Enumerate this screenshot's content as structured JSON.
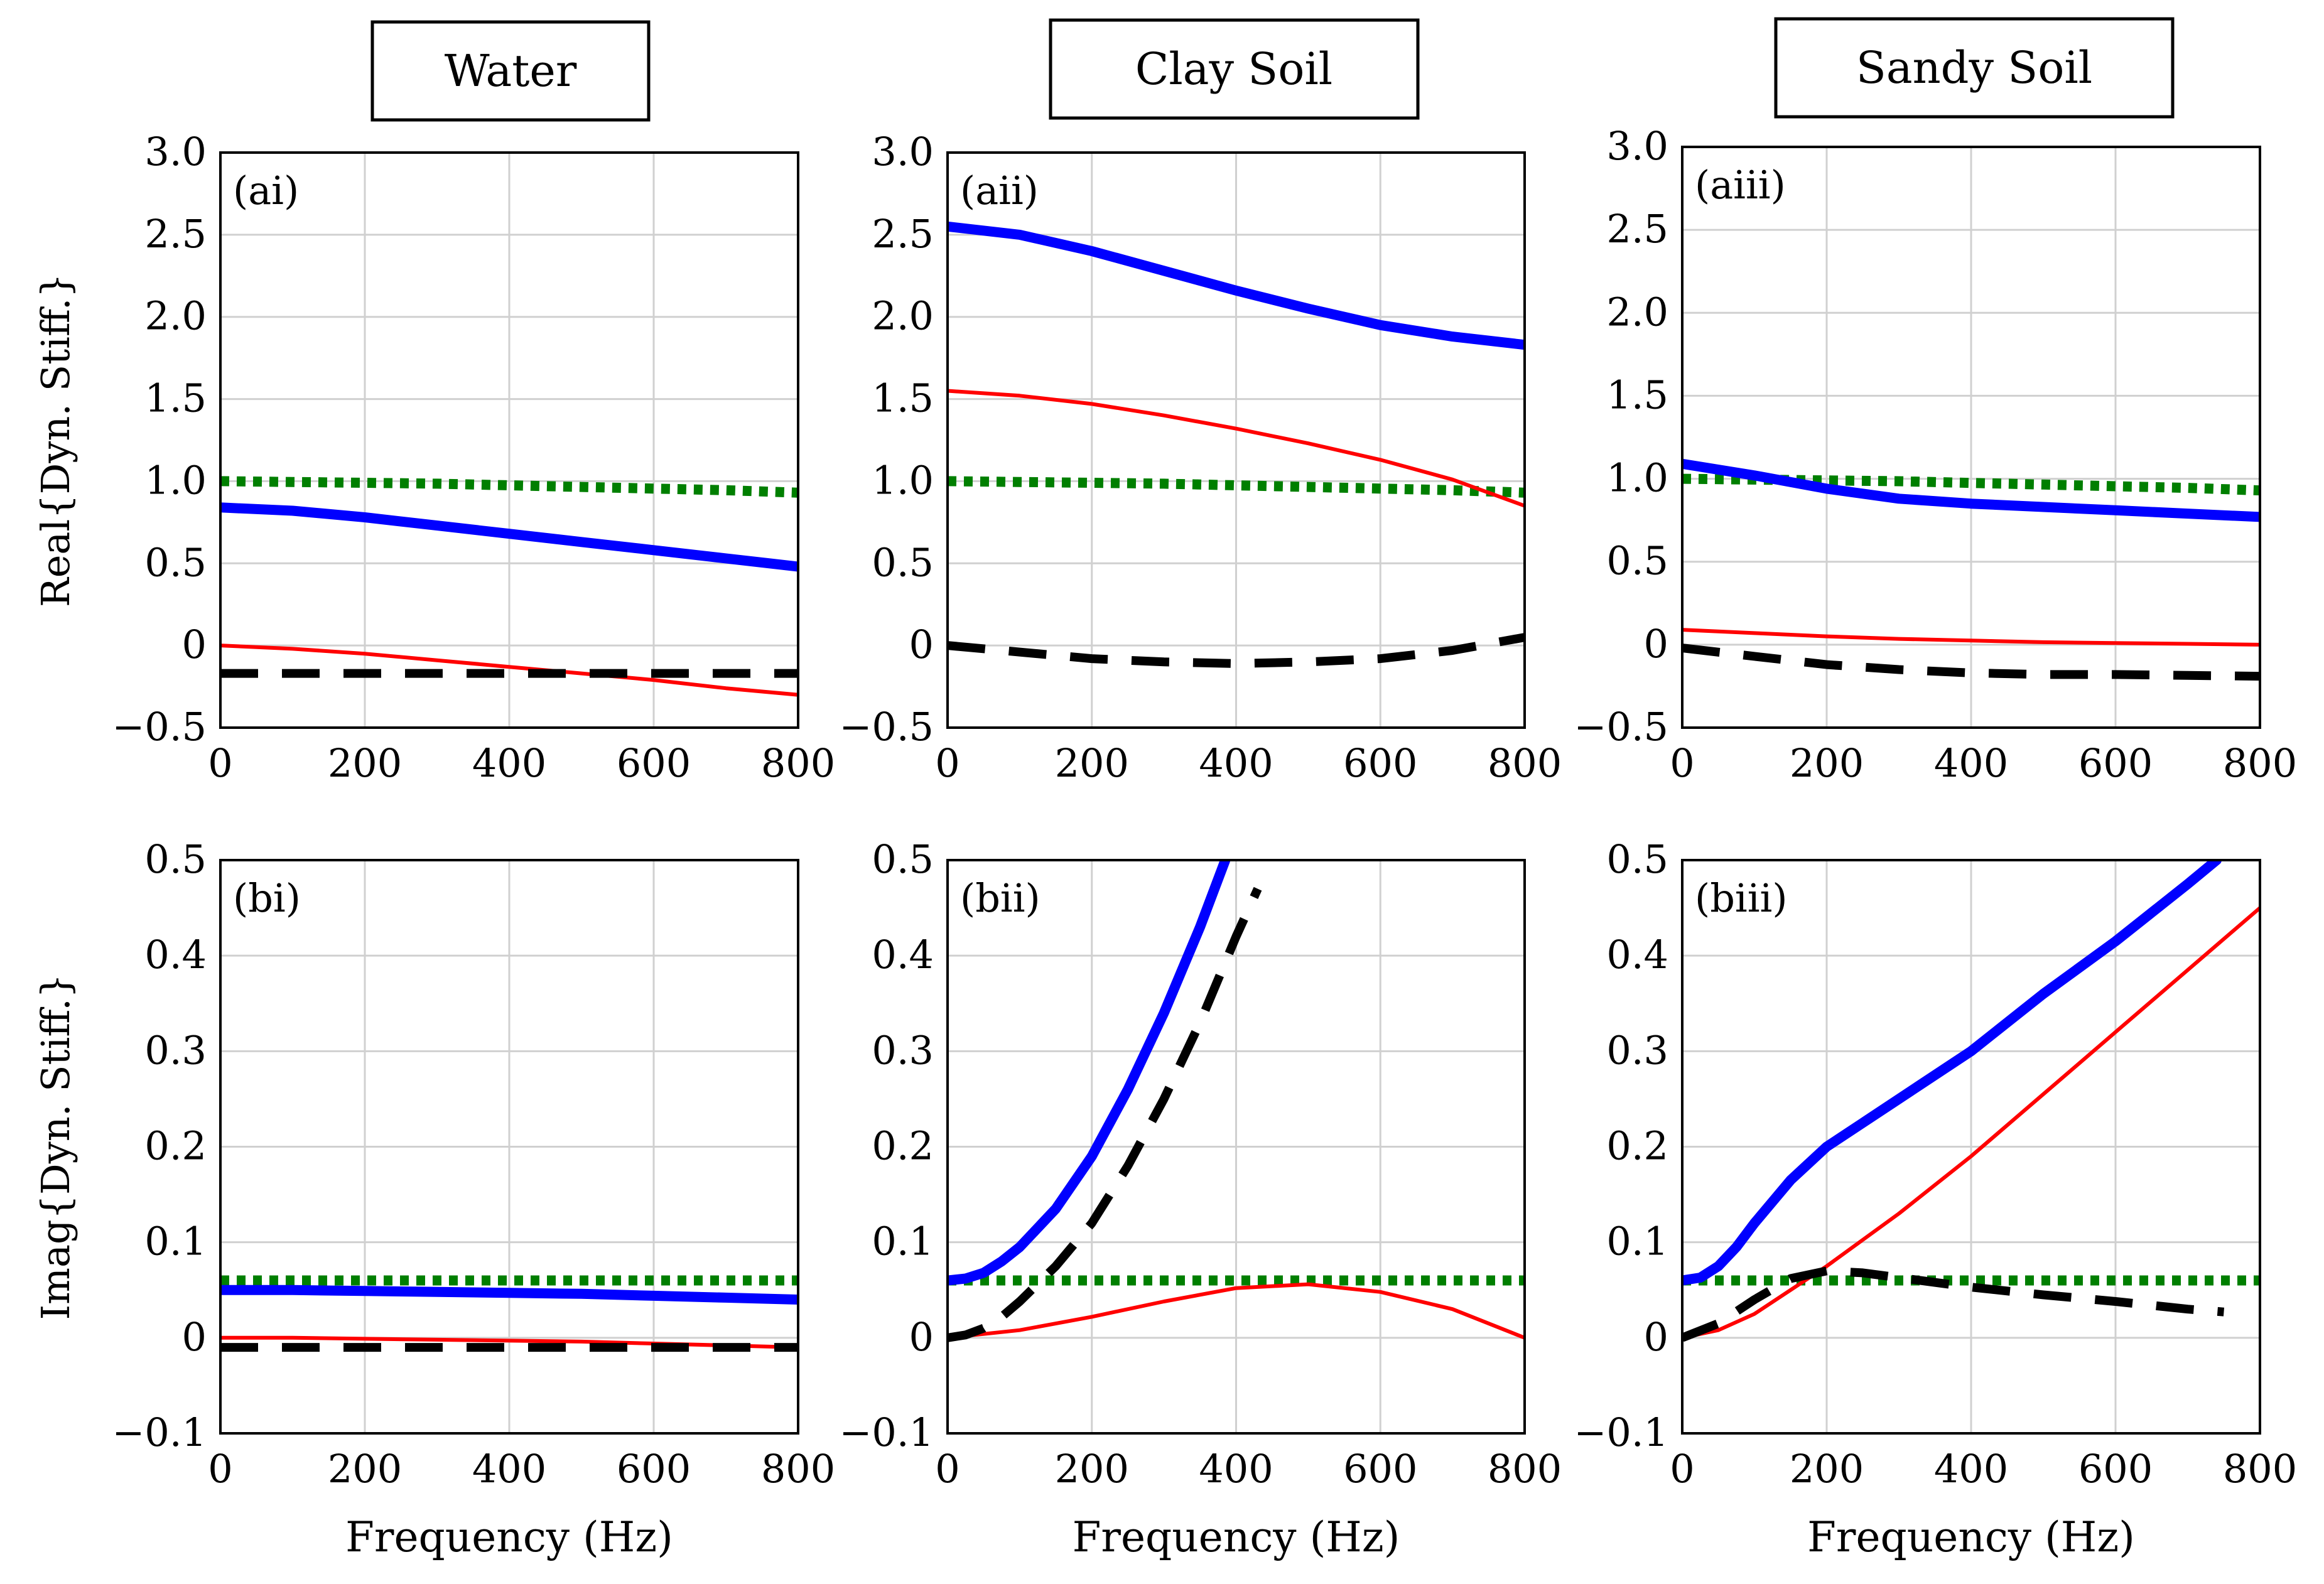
{
  "headers": [
    "Water",
    "Clay Soil",
    "Sandy Soil"
  ],
  "colors": {
    "blue": "#0000ff",
    "red": "#ff0000",
    "green": "#007f00",
    "black": "#000000",
    "grid": "#d0d0d0"
  },
  "chart_data": [
    {
      "type": "line",
      "label": "(ai)",
      "title": "",
      "xlabel": "",
      "ylabel": "Real{Dyn. Stiff.}",
      "xlim": [
        0,
        800
      ],
      "ylim": [
        -0.5,
        3.0
      ],
      "xticks": [
        0,
        200,
        400,
        600,
        800
      ],
      "xtick_labels": [
        "0",
        "200",
        "400",
        "600",
        "800"
      ],
      "yticks": [
        -0.5,
        0,
        0.5,
        1.0,
        1.5,
        2.0,
        2.5,
        3.0
      ],
      "ytick_labels": [
        "−0.5",
        "0",
        "0.5",
        "1.0",
        "1.5",
        "2.0",
        "2.5",
        "3.0"
      ],
      "x": [
        0,
        100,
        200,
        300,
        400,
        500,
        600,
        700,
        800
      ],
      "series": [
        {
          "name": "blue",
          "style": "blue-thick",
          "values": [
            0.84,
            0.82,
            0.78,
            0.73,
            0.68,
            0.63,
            0.58,
            0.53,
            0.48
          ]
        },
        {
          "name": "red",
          "style": "red-thin",
          "values": [
            0.0,
            -0.02,
            -0.05,
            -0.09,
            -0.13,
            -0.17,
            -0.21,
            -0.26,
            -0.3
          ]
        },
        {
          "name": "green",
          "style": "green-dotted",
          "values": [
            1.0,
            0.995,
            0.99,
            0.985,
            0.975,
            0.965,
            0.955,
            0.945,
            0.93
          ]
        },
        {
          "name": "black",
          "style": "black-dashed",
          "values": [
            -0.17,
            -0.17,
            -0.17,
            -0.17,
            -0.17,
            -0.17,
            -0.17,
            -0.17,
            -0.17
          ]
        }
      ]
    },
    {
      "type": "line",
      "label": "(aii)",
      "title": "",
      "xlabel": "",
      "ylabel": "",
      "xlim": [
        0,
        800
      ],
      "ylim": [
        -0.5,
        3.0
      ],
      "xticks": [
        0,
        200,
        400,
        600,
        800
      ],
      "xtick_labels": [
        "0",
        "200",
        "400",
        "600",
        "800"
      ],
      "yticks": [
        -0.5,
        0,
        0.5,
        1.0,
        1.5,
        2.0,
        2.5,
        3.0
      ],
      "ytick_labels": [
        "−0.5",
        "0",
        "0.5",
        "1.0",
        "1.5",
        "2.0",
        "2.5",
        "3.0"
      ],
      "x": [
        0,
        100,
        200,
        300,
        400,
        500,
        600,
        700,
        800
      ],
      "series": [
        {
          "name": "blue",
          "style": "blue-thick",
          "values": [
            2.55,
            2.5,
            2.4,
            2.28,
            2.16,
            2.05,
            1.95,
            1.88,
            1.83
          ]
        },
        {
          "name": "red",
          "style": "red-thin",
          "values": [
            1.55,
            1.52,
            1.47,
            1.4,
            1.32,
            1.23,
            1.13,
            1.01,
            0.85
          ]
        },
        {
          "name": "green",
          "style": "green-dotted",
          "values": [
            1.0,
            0.995,
            0.99,
            0.985,
            0.975,
            0.965,
            0.955,
            0.945,
            0.93
          ]
        },
        {
          "name": "black",
          "style": "black-dashed",
          "values": [
            0.0,
            -0.04,
            -0.08,
            -0.1,
            -0.11,
            -0.1,
            -0.08,
            -0.03,
            0.05
          ]
        }
      ]
    },
    {
      "type": "line",
      "label": "(aiii)",
      "title": "",
      "xlabel": "",
      "ylabel": "",
      "xlim": [
        0,
        800
      ],
      "ylim": [
        -0.5,
        3.0
      ],
      "xticks": [
        0,
        200,
        400,
        600,
        800
      ],
      "xtick_labels": [
        "0",
        "200",
        "400",
        "600",
        "800"
      ],
      "yticks": [
        -0.5,
        0,
        0.5,
        1.0,
        1.5,
        2.0,
        2.5,
        3.0
      ],
      "ytick_labels": [
        "−0.5",
        "0",
        "0.5",
        "1.0",
        "1.5",
        "2.0",
        "2.5",
        "3.0"
      ],
      "x": [
        0,
        100,
        200,
        300,
        400,
        500,
        600,
        700,
        800
      ],
      "series": [
        {
          "name": "blue",
          "style": "blue-thick",
          "values": [
            1.09,
            1.02,
            0.94,
            0.88,
            0.85,
            0.83,
            0.81,
            0.79,
            0.77
          ]
        },
        {
          "name": "red",
          "style": "red-thin",
          "values": [
            0.09,
            0.07,
            0.05,
            0.035,
            0.025,
            0.015,
            0.01,
            0.005,
            0.0
          ]
        },
        {
          "name": "green",
          "style": "green-dotted",
          "values": [
            1.0,
            0.995,
            0.99,
            0.985,
            0.975,
            0.965,
            0.955,
            0.945,
            0.93
          ]
        },
        {
          "name": "black",
          "style": "black-dashed",
          "values": [
            -0.02,
            -0.07,
            -0.12,
            -0.15,
            -0.17,
            -0.18,
            -0.18,
            -0.185,
            -0.19
          ]
        }
      ]
    },
    {
      "type": "line",
      "label": "(bi)",
      "title": "",
      "xlabel": "Frequency (Hz)",
      "ylabel": "Imag{Dyn. Stiff.}",
      "xlim": [
        0,
        800
      ],
      "ylim": [
        -0.1,
        0.5
      ],
      "xticks": [
        0,
        200,
        400,
        600,
        800
      ],
      "xtick_labels": [
        "0",
        "200",
        "400",
        "600",
        "800"
      ],
      "yticks": [
        -0.1,
        0,
        0.1,
        0.2,
        0.3,
        0.4,
        0.5
      ],
      "ytick_labels": [
        "−0.1",
        "0",
        "0.1",
        "0.2",
        "0.3",
        "0.4",
        "0.5"
      ],
      "x": [
        0,
        100,
        200,
        300,
        400,
        500,
        600,
        700,
        800
      ],
      "series": [
        {
          "name": "blue",
          "style": "blue-thick",
          "values": [
            0.05,
            0.05,
            0.049,
            0.048,
            0.047,
            0.046,
            0.044,
            0.042,
            0.04
          ]
        },
        {
          "name": "red",
          "style": "red-thin",
          "values": [
            0.0,
            0.0,
            -0.001,
            -0.002,
            -0.003,
            -0.004,
            -0.006,
            -0.008,
            -0.01
          ]
        },
        {
          "name": "green",
          "style": "green-dotted",
          "values": [
            0.06,
            0.06,
            0.06,
            0.06,
            0.06,
            0.06,
            0.06,
            0.06,
            0.06
          ]
        },
        {
          "name": "black",
          "style": "black-dashed",
          "values": [
            -0.01,
            -0.01,
            -0.01,
            -0.01,
            -0.01,
            -0.01,
            -0.01,
            -0.01,
            -0.01
          ]
        }
      ]
    },
    {
      "type": "line",
      "label": "(bii)",
      "title": "",
      "xlabel": "Frequency (Hz)",
      "ylabel": "",
      "xlim": [
        0,
        800
      ],
      "ylim": [
        -0.1,
        0.5
      ],
      "xticks": [
        0,
        200,
        400,
        600,
        800
      ],
      "xtick_labels": [
        "0",
        "200",
        "400",
        "600",
        "800"
      ],
      "yticks": [
        -0.1,
        0,
        0.1,
        0.2,
        0.3,
        0.4,
        0.5
      ],
      "ytick_labels": [
        "−0.1",
        "0",
        "0.1",
        "0.2",
        "0.3",
        "0.4",
        "0.5"
      ],
      "series": [
        {
          "name": "blue",
          "style": "blue-thick",
          "x": [
            0,
            25,
            50,
            75,
            100,
            150,
            200,
            250,
            300,
            350,
            385
          ],
          "values": [
            0.06,
            0.062,
            0.068,
            0.08,
            0.095,
            0.135,
            0.19,
            0.26,
            0.34,
            0.43,
            0.5
          ]
        },
        {
          "name": "red",
          "style": "red-thin",
          "x": [
            0,
            100,
            200,
            300,
            400,
            500,
            600,
            700,
            800
          ],
          "values": [
            0.0,
            0.008,
            0.022,
            0.038,
            0.052,
            0.056,
            0.048,
            0.03,
            0.0
          ]
        },
        {
          "name": "green",
          "style": "green-dotted",
          "x": [
            0,
            100,
            200,
            300,
            400,
            500,
            600,
            700,
            800
          ],
          "values": [
            0.06,
            0.06,
            0.06,
            0.06,
            0.06,
            0.06,
            0.06,
            0.06,
            0.06
          ]
        },
        {
          "name": "black",
          "style": "black-dashed",
          "x": [
            0,
            25,
            50,
            75,
            100,
            150,
            200,
            250,
            300,
            350,
            400,
            430
          ],
          "values": [
            0.0,
            0.003,
            0.01,
            0.022,
            0.038,
            0.075,
            0.12,
            0.18,
            0.25,
            0.33,
            0.42,
            0.47
          ]
        }
      ]
    },
    {
      "type": "line",
      "label": "(biii)",
      "title": "",
      "xlabel": "Frequency (Hz)",
      "ylabel": "",
      "xlim": [
        0,
        800
      ],
      "ylim": [
        -0.1,
        0.5
      ],
      "xticks": [
        0,
        200,
        400,
        600,
        800
      ],
      "xtick_labels": [
        "0",
        "200",
        "400",
        "600",
        "800"
      ],
      "yticks": [
        -0.1,
        0,
        0.1,
        0.2,
        0.3,
        0.4,
        0.5
      ],
      "ytick_labels": [
        "−0.1",
        "0",
        "0.1",
        "0.2",
        "0.3",
        "0.4",
        "0.5"
      ],
      "series": [
        {
          "name": "blue",
          "style": "blue-thick",
          "x": [
            0,
            25,
            50,
            75,
            100,
            150,
            200,
            250,
            300,
            400,
            500,
            600,
            700,
            740
          ],
          "values": [
            0.06,
            0.063,
            0.075,
            0.095,
            0.12,
            0.165,
            0.2,
            0.225,
            0.25,
            0.3,
            0.36,
            0.415,
            0.475,
            0.5
          ]
        },
        {
          "name": "red",
          "style": "red-thin",
          "x": [
            0,
            50,
            100,
            150,
            200,
            300,
            400,
            500,
            600,
            700,
            800
          ],
          "values": [
            0.0,
            0.008,
            0.025,
            0.05,
            0.075,
            0.13,
            0.19,
            0.255,
            0.32,
            0.385,
            0.45
          ]
        },
        {
          "name": "green",
          "style": "green-dotted",
          "x": [
            0,
            100,
            200,
            300,
            400,
            500,
            600,
            700,
            800
          ],
          "values": [
            0.06,
            0.06,
            0.06,
            0.06,
            0.06,
            0.06,
            0.06,
            0.06,
            0.06
          ]
        },
        {
          "name": "black",
          "style": "black-dashed",
          "x": [
            0,
            50,
            100,
            150,
            200,
            250,
            300,
            400,
            500,
            600,
            700,
            750
          ],
          "values": [
            0.0,
            0.015,
            0.04,
            0.062,
            0.07,
            0.068,
            0.063,
            0.053,
            0.045,
            0.038,
            0.03,
            0.027
          ]
        }
      ]
    }
  ]
}
